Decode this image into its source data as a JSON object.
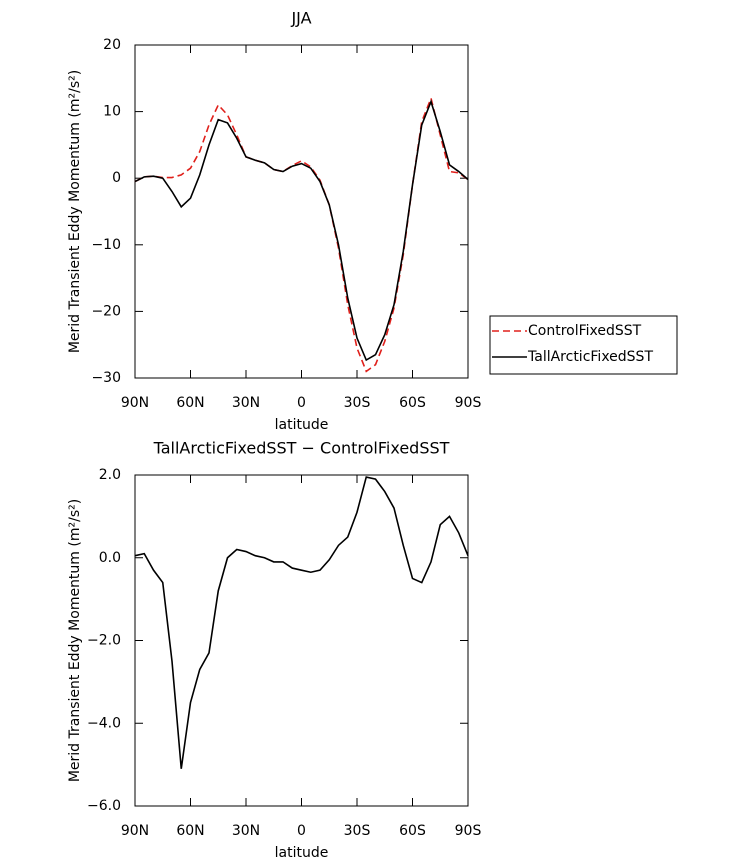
{
  "chart_data": [
    {
      "type": "line",
      "title": "JJA",
      "xlabel": "latitude",
      "ylabel": "Merid Transient Eddy Momentum (m²/s²)",
      "x": [
        90,
        85,
        80,
        75,
        70,
        65,
        60,
        55,
        50,
        45,
        40,
        35,
        30,
        25,
        20,
        15,
        10,
        5,
        0,
        -5,
        -10,
        -15,
        -20,
        -25,
        -30,
        -35,
        -40,
        -45,
        -50,
        -55,
        -60,
        -65,
        -70,
        -75,
        -80,
        -85,
        -90
      ],
      "xlim": [
        90,
        -90
      ],
      "xticks": [
        {
          "value": 90,
          "label": "90N"
        },
        {
          "value": 60,
          "label": "60N"
        },
        {
          "value": 30,
          "label": "30N"
        },
        0,
        {
          "value": -30,
          "label": "30S"
        },
        {
          "value": -60,
          "label": "60S"
        },
        {
          "value": -90,
          "label": "90S"
        }
      ],
      "ylim": [
        -30,
        20
      ],
      "yticks": [
        {
          "value": -30,
          "label": "−30"
        },
        {
          "value": -20,
          "label": "−20"
        },
        {
          "value": -10,
          "label": "−10"
        },
        0,
        10,
        20
      ],
      "legend": "right",
      "series": [
        {
          "name": "ControlFixedSST",
          "color": "#e0201b",
          "linestyle": "dashed",
          "values": [
            -0.5,
            0.2,
            0.3,
            0.1,
            0.1,
            0.5,
            1.5,
            4,
            8,
            11,
            9.5,
            6.5,
            3.2,
            2.7,
            2.3,
            1.3,
            1,
            1.9,
            2.6,
            1.7,
            -0.3,
            -4,
            -10.5,
            -19,
            -25.5,
            -29,
            -28,
            -24.5,
            -19.5,
            -11.5,
            -1,
            8.5,
            12,
            6.5,
            1,
            0.8,
            -0.2
          ]
        },
        {
          "name": "TallArcticFixedSST",
          "color": "#000000",
          "linestyle": "solid",
          "values": [
            -0.5,
            0.2,
            0.3,
            0,
            -2,
            -4.3,
            -3,
            0.5,
            5,
            8.8,
            8.3,
            6,
            3.2,
            2.7,
            2.3,
            1.3,
            1,
            1.8,
            2.2,
            1.5,
            -0.5,
            -4,
            -10,
            -18,
            -24,
            -27.3,
            -26.5,
            -23.5,
            -19,
            -11,
            -1,
            8,
            11.5,
            7,
            2,
            1,
            -0.2
          ]
        }
      ]
    },
    {
      "type": "line",
      "title": "TallArcticFixedSST − ControlFixedSST",
      "xlabel": "latitude",
      "ylabel": "Merid Transient Eddy Momentum (m²/s²)",
      "x": [
        90,
        85,
        80,
        75,
        70,
        65,
        60,
        55,
        50,
        45,
        40,
        35,
        30,
        25,
        20,
        15,
        10,
        5,
        0,
        -5,
        -10,
        -15,
        -20,
        -25,
        -30,
        -35,
        -40,
        -45,
        -50,
        -55,
        -60,
        -65,
        -70,
        -75,
        -80,
        -85,
        -90
      ],
      "xlim": [
        90,
        -90
      ],
      "xticks": [
        {
          "value": 90,
          "label": "90N"
        },
        {
          "value": 60,
          "label": "60N"
        },
        {
          "value": 30,
          "label": "30N"
        },
        0,
        {
          "value": -30,
          "label": "30S"
        },
        {
          "value": -60,
          "label": "60S"
        },
        {
          "value": -90,
          "label": "90S"
        }
      ],
      "ylim": [
        -6,
        2
      ],
      "yticks": [
        {
          "value": -6,
          "label": "−6.0"
        },
        {
          "value": -4,
          "label": "−4.0"
        },
        {
          "value": -2,
          "label": "−2.0"
        },
        {
          "value": 0,
          "label": "0.0"
        },
        {
          "value": 2,
          "label": "2.0"
        }
      ],
      "series": [
        {
          "color": "#000000",
          "linestyle": "solid",
          "values": [
            0.05,
            0.1,
            -0.3,
            -0.6,
            -2.5,
            -5.1,
            -3.5,
            -2.7,
            -2.3,
            -0.8,
            0,
            0.2,
            0.15,
            0.05,
            0,
            -0.1,
            -0.1,
            -0.25,
            -0.3,
            -0.35,
            -0.3,
            -0.05,
            0.3,
            0.5,
            1.1,
            1.95,
            1.9,
            1.6,
            1.2,
            0.3,
            -0.5,
            -0.6,
            -0.1,
            0.8,
            1,
            0.6,
            0.05
          ]
        }
      ]
    }
  ]
}
